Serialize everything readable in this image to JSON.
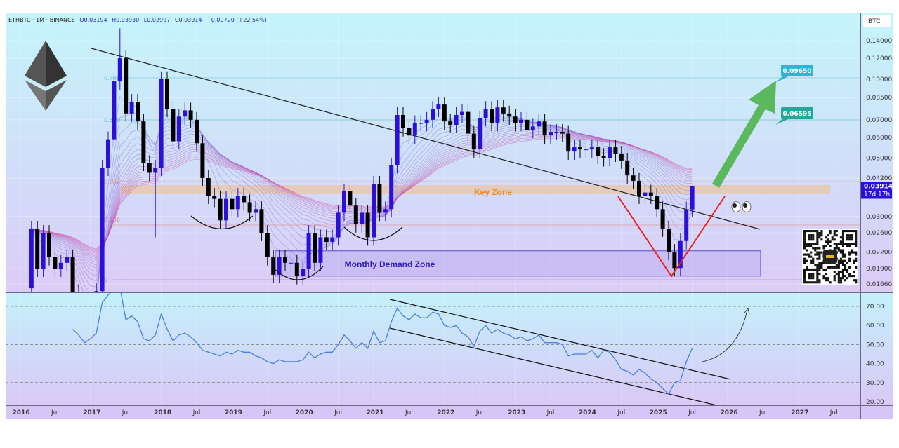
{
  "header": {
    "symbol": "ETHBTC · 1M · BINANCE",
    "open": "O0.03194",
    "high": "H0.03930",
    "low": "L0.02997",
    "close": "C0.03914",
    "change": "+0.00720 (+22.54%)"
  },
  "price_axis": {
    "currency": "BTC",
    "ticks": [
      "0.14000",
      "0.12000",
      "0.10000",
      "0.08500",
      "0.07000",
      "0.06000",
      "0.05000",
      "0.04200",
      "0.03000",
      "0.02600",
      "0.02200",
      "0.01900",
      "0.01660"
    ],
    "tick_values": [
      0.14,
      0.12,
      0.1,
      0.085,
      0.07,
      0.06,
      0.05,
      0.042,
      0.03,
      0.026,
      0.022,
      0.019,
      0.0166
    ],
    "last_price": "0.03914",
    "countdown": "17d 17h"
  },
  "rsi_axis": {
    "ticks": [
      "70.00",
      "60.00",
      "50.00",
      "40.00",
      "30.00",
      "20.00"
    ],
    "tick_values": [
      70,
      60,
      50,
      40,
      30,
      20
    ]
  },
  "time_axis": {
    "labels": [
      "2016",
      "Jul",
      "2017",
      "Jul",
      "2018",
      "Jul",
      "2019",
      "Jul",
      "2020",
      "Jul",
      "2021",
      "Jul",
      "2022",
      "Jul",
      "2023",
      "Jul",
      "2024",
      "Jul",
      "2025",
      "Jul",
      "2026",
      "Jul",
      "2027",
      "Jul"
    ]
  },
  "annotations": {
    "key_zone": "Key Zone",
    "demand_zone": "Monthly Demand Zone",
    "target_1": "0.09650",
    "target_2": "0.06595",
    "fib_levels": [
      "0.786",
      "0.618",
      "0.382",
      "0.236",
      "0"
    ]
  },
  "colors": {
    "up": "#2a10d8",
    "down": "#000000",
    "rsi": "#4a7fe0",
    "target_1_bg": "#2bb7d4",
    "target_2_bg": "#26a69a",
    "arrow": "#5cb85c",
    "v_shape": "#e8231f"
  },
  "chart_data": {
    "type": "candlestick",
    "title": "ETHBTC · 1M · BINANCE",
    "ylabel": "BTC",
    "yscale": "log",
    "ylim": [
      0.0155,
      0.17
    ],
    "start_month": "2016-03",
    "first_open": 0.016,
    "closes": [
      0.027,
      0.019,
      0.026,
      0.021,
      0.019,
      0.02,
      0.021,
      0.0155,
      0.0118,
      0.0083,
      0.0109,
      0.0156,
      0.046,
      0.059,
      0.098,
      0.12,
      0.074,
      0.082,
      0.069,
      0.048,
      0.044,
      0.046,
      0.1,
      0.077,
      0.058,
      0.072,
      0.076,
      0.07,
      0.057,
      0.042,
      0.036,
      0.035,
      0.029,
      0.035,
      0.032,
      0.036,
      0.034,
      0.031,
      0.032,
      0.026,
      0.021,
      0.018,
      0.021,
      0.02,
      0.02,
      0.0178,
      0.019,
      0.026,
      0.02,
      0.025,
      0.024,
      0.025,
      0.031,
      0.0374,
      0.033,
      0.028,
      0.031,
      0.025,
      0.04,
      0.031,
      0.032,
      0.047,
      0.073,
      0.065,
      0.061,
      0.068,
      0.068,
      0.07,
      0.077,
      0.08,
      0.069,
      0.067,
      0.073,
      0.075,
      0.062,
      0.054,
      0.071,
      0.077,
      0.068,
      0.078,
      0.074,
      0.072,
      0.068,
      0.07,
      0.064,
      0.066,
      0.069,
      0.061,
      0.063,
      0.063,
      0.062,
      0.053,
      0.055,
      0.054,
      0.054,
      0.055,
      0.051,
      0.05,
      0.055,
      0.052,
      0.049,
      0.043,
      0.041,
      0.036,
      0.037,
      0.036,
      0.032,
      0.027,
      0.022,
      0.0191,
      0.0242,
      0.03194,
      0.03914
    ],
    "last_candle": {
      "open": 0.03194,
      "high": 0.0393,
      "low": 0.02997,
      "close": 0.03914
    },
    "rsi": {
      "start_month": "2016-10",
      "ylim": [
        20,
        80
      ],
      "levels": [
        70,
        50,
        30
      ],
      "values": [
        58,
        55,
        51,
        53,
        56,
        72,
        76,
        79,
        80,
        63,
        65,
        62,
        53,
        52,
        55,
        66,
        58,
        52,
        55,
        56,
        54,
        51,
        47,
        46,
        45,
        44,
        46,
        45,
        47,
        46,
        46,
        44,
        43,
        41,
        40,
        42,
        41,
        41,
        41,
        42,
        46,
        43,
        45,
        46,
        46,
        50,
        55,
        52,
        48,
        51,
        48,
        57,
        51,
        52,
        62,
        69,
        65,
        63,
        66,
        64,
        64,
        67,
        66,
        60,
        59,
        60,
        56,
        54,
        49,
        57,
        60,
        56,
        58,
        56,
        55,
        53,
        54,
        52,
        53,
        55,
        51,
        51,
        51,
        50,
        44,
        45,
        45,
        45,
        47,
        43,
        47,
        46,
        42,
        37,
        36,
        34,
        37,
        35,
        32,
        30,
        27,
        24,
        30,
        31,
        41,
        48
      ]
    },
    "zones": {
      "key_zone": [
        0.0365,
        0.0395
      ],
      "demand_zone": [
        0.0178,
        0.0222
      ]
    },
    "targets": [
      0.0965,
      0.06595
    ]
  }
}
